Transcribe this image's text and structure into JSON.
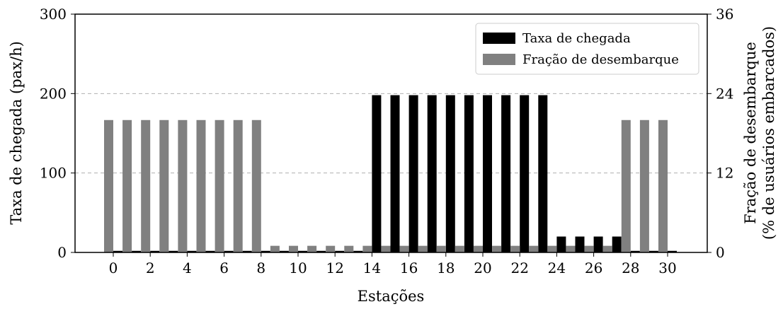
{
  "chart_data": {
    "type": "bar",
    "xlabel": "Estações",
    "ylabel_left": "Taxa de chegada (pax/h)",
    "ylabel_right_line1": "Fração de desembarque",
    "ylabel_right_line2": "(% de usuários embarcados)",
    "x": [
      0,
      1,
      2,
      3,
      4,
      5,
      6,
      7,
      8,
      9,
      10,
      11,
      12,
      13,
      14,
      15,
      16,
      17,
      18,
      19,
      20,
      21,
      22,
      23,
      24,
      25,
      26,
      27,
      28,
      29,
      30
    ],
    "x_ticks": [
      "0",
      "2",
      "4",
      "6",
      "8",
      "10",
      "12",
      "14",
      "16",
      "18",
      "20",
      "22",
      "24",
      "26",
      "28",
      "30"
    ],
    "ylim_left": [
      0,
      300
    ],
    "y_ticks_left": [
      "0",
      "100",
      "200",
      "300"
    ],
    "ylim_right": [
      0,
      36
    ],
    "y_ticks_right": [
      "0",
      "12",
      "24",
      "36"
    ],
    "grid": "horizontal dashed",
    "legend_position": "top-right",
    "series": [
      {
        "name": "Taxa de chegada",
        "axis": "left",
        "color": "#000000",
        "values": [
          2,
          2,
          2,
          2,
          2,
          2,
          2,
          2,
          2,
          2,
          2,
          2,
          2,
          2,
          198,
          198,
          198,
          198,
          198,
          198,
          198,
          198,
          198,
          198,
          20,
          20,
          20,
          20,
          2,
          2,
          2
        ]
      },
      {
        "name": "Fração de desembarque",
        "axis": "right",
        "color": "#808080",
        "values": [
          20,
          20,
          20,
          20,
          20,
          20,
          20,
          20,
          20,
          1,
          1,
          1,
          1,
          1,
          1,
          1,
          1,
          1,
          1,
          1,
          1,
          1,
          1,
          1,
          1,
          1,
          1,
          1,
          20,
          20,
          20
        ]
      }
    ]
  }
}
